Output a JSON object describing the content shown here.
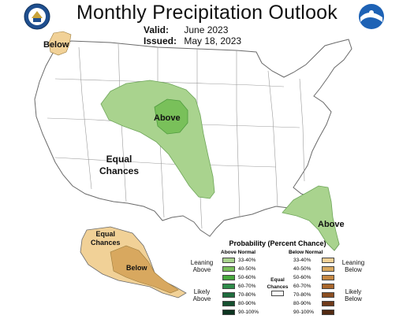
{
  "header": {
    "title": "Monthly Precipitation Outlook",
    "valid_label": "Valid:",
    "valid_value": "June 2023",
    "issued_label": "Issued:",
    "issued_value": "May 18, 2023"
  },
  "seals": {
    "left": "commerce-dept-seal",
    "right": "noaa-seal"
  },
  "map_labels": {
    "nw_below": "Below",
    "rockies_above": "Above",
    "equal_line1": "Equal",
    "equal_line2": "Chances",
    "florida_above": "Above",
    "ak_equal_line1": "Equal",
    "ak_equal_line2": "Chances",
    "ak_below": "Below"
  },
  "legend": {
    "title": "Probability (Percent Chance)",
    "above_header": "Above Normal",
    "below_header": "Below Normal",
    "equal_line1": "Equal",
    "equal_line2": "Chances",
    "leaning_above_1": "Leaning",
    "leaning_above_2": "Above",
    "likely_above_1": "Likely",
    "likely_above_2": "Above",
    "leaning_below_1": "Leaning",
    "leaning_below_2": "Below",
    "likely_below_1": "Likely",
    "likely_below_2": "Below",
    "above_rows": [
      {
        "range": "33-40%",
        "color": "#a9d38e"
      },
      {
        "range": "40-50%",
        "color": "#79c05a"
      },
      {
        "range": "50-60%",
        "color": "#48a83e"
      },
      {
        "range": "60-70%",
        "color": "#2e8b4a"
      },
      {
        "range": "70-80%",
        "color": "#1f6d3e"
      },
      {
        "range": "80-90%",
        "color": "#15502f"
      },
      {
        "range": "90-100%",
        "color": "#0c3520"
      }
    ],
    "below_rows": [
      {
        "range": "33-40%",
        "color": "#f1d197"
      },
      {
        "range": "40-50%",
        "color": "#d8a85f"
      },
      {
        "range": "50-60%",
        "color": "#c58742"
      },
      {
        "range": "60-70%",
        "color": "#a9672c"
      },
      {
        "range": "70-80%",
        "color": "#8c4f22"
      },
      {
        "range": "80-90%",
        "color": "#6f3a1a"
      },
      {
        "range": "90-100%",
        "color": "#522a12"
      }
    ]
  },
  "colors": {
    "above_33_40": "#a9d38e",
    "above_40_50": "#79c05a",
    "below_33_40": "#f1d197",
    "below_40_50": "#d8a85f"
  }
}
